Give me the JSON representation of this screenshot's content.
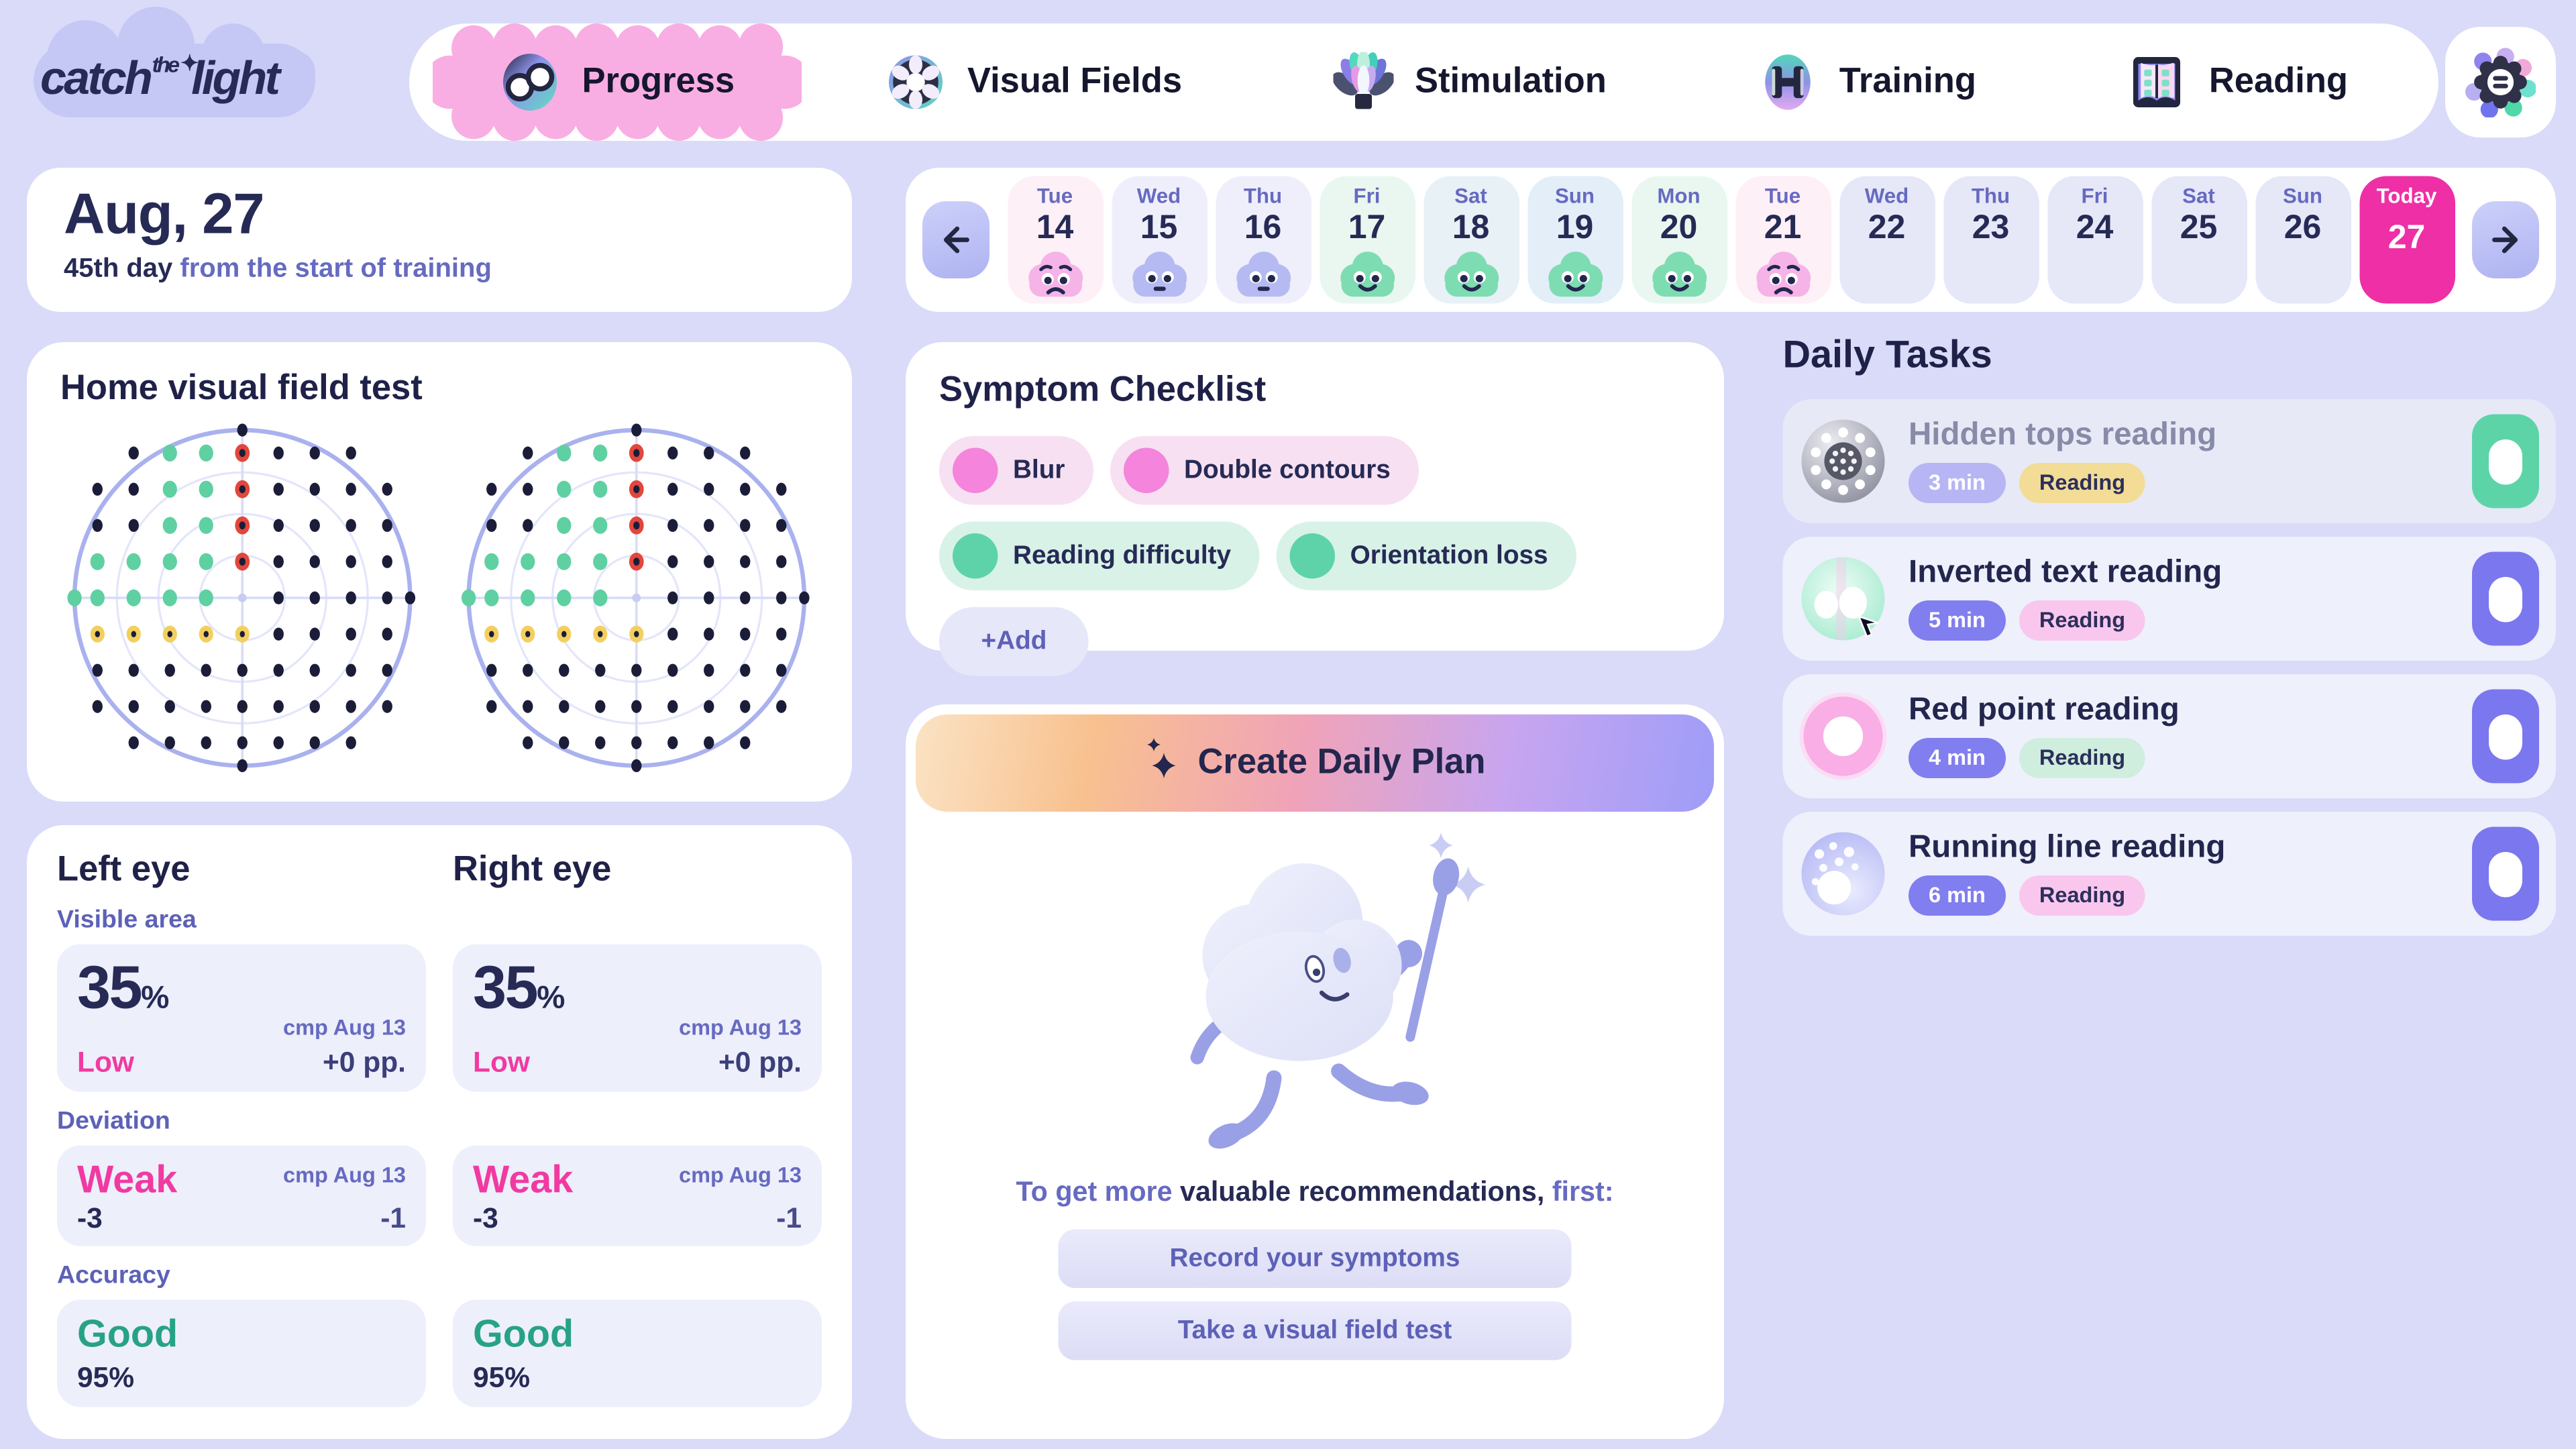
{
  "app": {
    "logo": {
      "word1": "catch",
      "word2": "the",
      "word3": "light"
    }
  },
  "nav": {
    "tabs": [
      {
        "label": "Progress",
        "active": true
      },
      {
        "label": "Visual Fields",
        "active": false
      },
      {
        "label": "Stimulation",
        "active": false
      },
      {
        "label": "Training",
        "active": false
      },
      {
        "label": "Reading",
        "active": false
      }
    ],
    "settings_icon": "gear-icon"
  },
  "date_panel": {
    "date": "Aug, 27",
    "day_count": "45th day",
    "subtitle": " from the start of training"
  },
  "calendar": {
    "days": [
      {
        "dow": "Tue",
        "num": "14",
        "mood": "sad",
        "cloud": "#f6b3e8",
        "bg": "#fdf0f6",
        "today": false
      },
      {
        "dow": "Wed",
        "num": "15",
        "mood": "neutral",
        "cloud": "#b6baf2",
        "bg": "#efeffb",
        "today": false
      },
      {
        "dow": "Thu",
        "num": "16",
        "mood": "neutral",
        "cloud": "#b6baf2",
        "bg": "#efeffb",
        "today": false
      },
      {
        "dow": "Fri",
        "num": "17",
        "mood": "happy",
        "cloud": "#7edcb2",
        "bg": "#e9f7f0",
        "today": false
      },
      {
        "dow": "Sat",
        "num": "18",
        "mood": "happy",
        "cloud": "#7edcb2",
        "bg": "#e7f1f6",
        "today": false
      },
      {
        "dow": "Sun",
        "num": "19",
        "mood": "happy",
        "cloud": "#7edcb2",
        "bg": "#e3eef8",
        "today": false
      },
      {
        "dow": "Mon",
        "num": "20",
        "mood": "happy",
        "cloud": "#7edcb2",
        "bg": "#e9f7f0",
        "today": false
      },
      {
        "dow": "Tue",
        "num": "21",
        "mood": "sad",
        "cloud": "#f6b3e8",
        "bg": "#fdf0f6",
        "today": false
      },
      {
        "dow": "Wed",
        "num": "22",
        "mood": null,
        "cloud": null,
        "bg": "#e6e8f8",
        "today": false
      },
      {
        "dow": "Thu",
        "num": "23",
        "mood": null,
        "cloud": null,
        "bg": "#e6e8f8",
        "today": false
      },
      {
        "dow": "Fri",
        "num": "24",
        "mood": null,
        "cloud": null,
        "bg": "#e6e8f8",
        "today": false
      },
      {
        "dow": "Sat",
        "num": "25",
        "mood": null,
        "cloud": null,
        "bg": "#e6e8f8",
        "today": false
      },
      {
        "dow": "Sun",
        "num": "26",
        "mood": null,
        "cloud": null,
        "bg": "#e6e8f8",
        "today": false
      },
      {
        "dow": "Today",
        "num": "27",
        "mood": null,
        "cloud": null,
        "bg": "#ee2fa6",
        "today": true
      }
    ]
  },
  "field_test": {
    "title": "Home visual field test",
    "charts": [
      "left",
      "right"
    ],
    "grid": [
      "_KGGRKKK_",
      "KKGGRKKKK",
      "KKGGRKKKK",
      "GGGGRKKKK",
      "GGGGCKKKK",
      "YYYYYKKKK",
      "KKKKKKKKK",
      "KKKKKKKKK",
      "_KKKKKKK_"
    ],
    "edges": {
      "top": "K",
      "bottom": "K",
      "left": "G",
      "right": "K"
    },
    "colors": {
      "outer": "#a9b1ee",
      "rings": "#e3e6fa",
      "cross": "#d9ddf7",
      "black": "#1b1d38",
      "green": "#5fd0a2",
      "red": "#e2463c",
      "yellow": "#f3cf5f",
      "fix": "#c9ccf2"
    }
  },
  "eye_stats": {
    "left_title": "Left eye",
    "right_title": "Right eye",
    "labels": {
      "visible": "Visible area",
      "deviation": "Deviation",
      "accuracy": "Accuracy"
    },
    "visible": {
      "value": "35",
      "unit": "%",
      "status": "Low",
      "cmp": "cmp Aug 13",
      "delta": "+0 pp."
    },
    "deviation": {
      "status": "Weak",
      "cmp": "cmp Aug 13",
      "value": "-3",
      "delta": "-1"
    },
    "accuracy": {
      "status": "Good",
      "value": "95%"
    }
  },
  "symptoms": {
    "title": "Symptom Checklist",
    "items": [
      {
        "label": "Blur",
        "type": "pink"
      },
      {
        "label": "Double contours",
        "type": "pink"
      },
      {
        "label": "Reading difficulty",
        "type": "mint"
      },
      {
        "label": "Orientation loss",
        "type": "mint"
      },
      {
        "label": "+Add",
        "type": "add"
      }
    ]
  },
  "plan": {
    "button_label": "Create Daily Plan",
    "hint_prefix": "To get more ",
    "hint_bold": "valuable recommendations,",
    "hint_suffix": " first:",
    "actions": [
      "Record your symptoms",
      "Take a visual field test"
    ]
  },
  "tasks": {
    "title": "Daily Tasks",
    "items": [
      {
        "title": "Hidden tops reading",
        "duration": "3 min",
        "tag": "Reading",
        "icon": "sphere-dots",
        "tag_color": "tag-yellow",
        "done": true
      },
      {
        "title": "Inverted text reading",
        "duration": "5 min",
        "tag": "Reading",
        "icon": "mint-disc",
        "tag_color": "tag-pink",
        "done": false
      },
      {
        "title": "Red point reading",
        "duration": "4 min",
        "tag": "Reading",
        "icon": "pink-donut",
        "tag_color": "tag-mint",
        "done": false
      },
      {
        "title": "Running line reading",
        "duration": "6 min",
        "tag": "Reading",
        "icon": "speckled-donut",
        "tag_color": "tag-pink",
        "done": false
      }
    ]
  },
  "colors": {
    "page_bg": "#d9dbf9",
    "accent_pink": "#f13aa1",
    "today_pink": "#ee2fa6",
    "accent_teal": "#27a287",
    "accent_purple": "#5d61b7",
    "navy": "#23264d"
  }
}
